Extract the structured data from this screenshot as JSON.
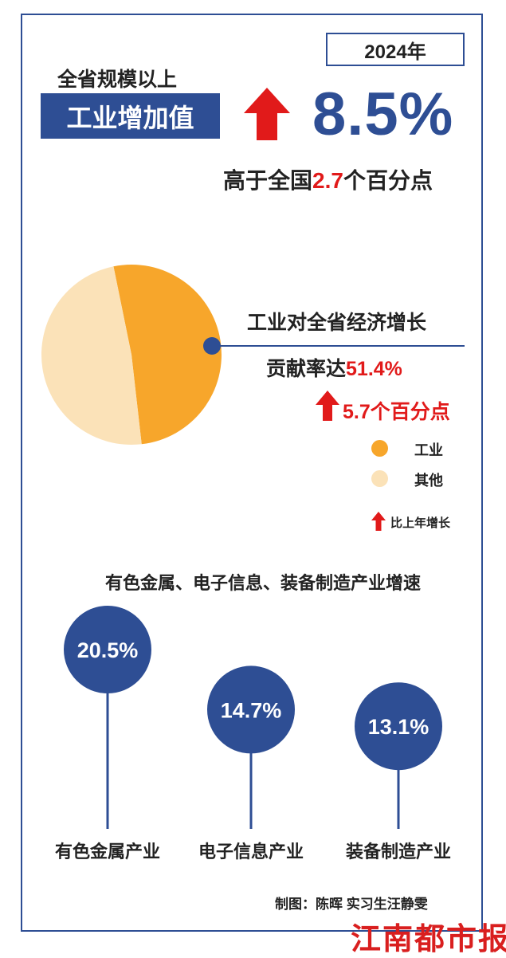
{
  "header": {
    "year": "2024年",
    "subtitle": "全省规模以上",
    "label": "工业增加值",
    "growth_value": "8.5%",
    "compare_prefix": "高于全国",
    "compare_value": "2.7",
    "compare_suffix": "个百分点"
  },
  "contribution": {
    "line1": "工业对全省经济增长",
    "line2_prefix": "贡献率达",
    "line2_value": "51.4%",
    "change": "5.7个百分点"
  },
  "legend": {
    "items": [
      {
        "label": "工业",
        "color": "#f7a62b"
      },
      {
        "label": "其他",
        "color": "#fbe2b8"
      }
    ],
    "note": "比上年增长",
    "note_icon": "red-up-arrow-icon"
  },
  "industries": {
    "title": "有色金属、电子信息、装备制造产业增速"
  },
  "credit": "制图：陈晖 实习生汪静雯",
  "logo": "江南都市报",
  "colors": {
    "accent": "#2e4e94",
    "highlight": "#e11a1a",
    "industry": "#f7a62b",
    "other": "#fbe2b8"
  },
  "chart_data": [
    {
      "type": "pie",
      "categories": [
        "工业",
        "其他"
      ],
      "values": [
        51.4,
        48.6
      ],
      "colors": [
        "#f7a62b",
        "#fbe2b8"
      ]
    },
    {
      "type": "bar",
      "categories": [
        "有色金属产业",
        "电子信息产业",
        "装备制造产业"
      ],
      "values": [
        20.5,
        14.7,
        13.1
      ],
      "value_labels": [
        "20.5%",
        "14.7%",
        "13.1%"
      ],
      "color": "#2e4e94"
    }
  ]
}
